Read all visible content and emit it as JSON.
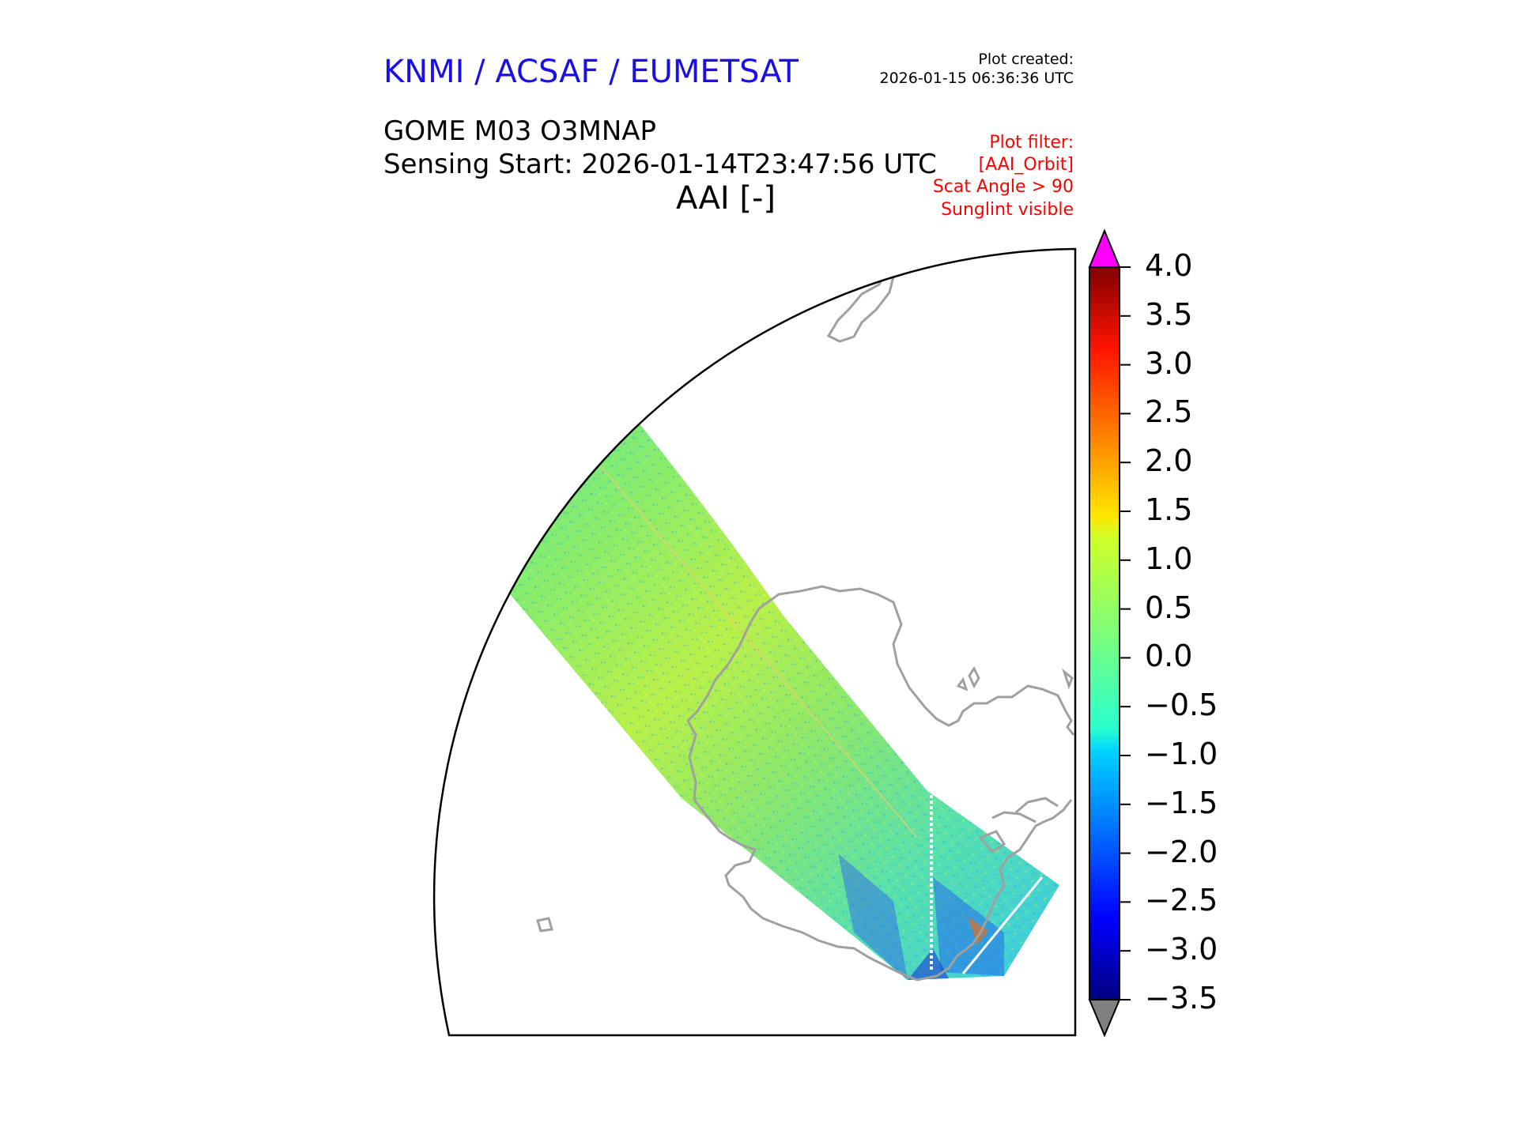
{
  "header": {
    "organization": "KNMI / ACSAF / EUMETSAT",
    "plot_created_label": "Plot created:",
    "plot_created_time": "2026-01-15 06:36:36 UTC",
    "product": "GOME M03 O3MNAP",
    "sensing_start": "Sensing Start: 2026-01-14T23:47:56 UTC",
    "variable": "AAI [-]"
  },
  "plot_filter": [
    "Plot filter:",
    "[AAI_Orbit]",
    "Scat Angle > 90",
    "Sunglint visible"
  ],
  "colorbar": {
    "ticks": [
      "4.0",
      "3.5",
      "3.0",
      "2.5",
      "2.0",
      "1.5",
      "1.0",
      "0.5",
      "0.0",
      "−0.5",
      "−1.0",
      "−1.5",
      "−2.0",
      "−2.5",
      "−3.0",
      "−3.5"
    ],
    "min": -3.5,
    "max": 4.0,
    "colormap": "jet",
    "extend_over_color": "#ff00ff",
    "extend_under_color": "#808080"
  },
  "map": {
    "coastline_color": "#a0a0a0",
    "swath_dominant_range": [
      -0.5,
      1.0
    ]
  }
}
